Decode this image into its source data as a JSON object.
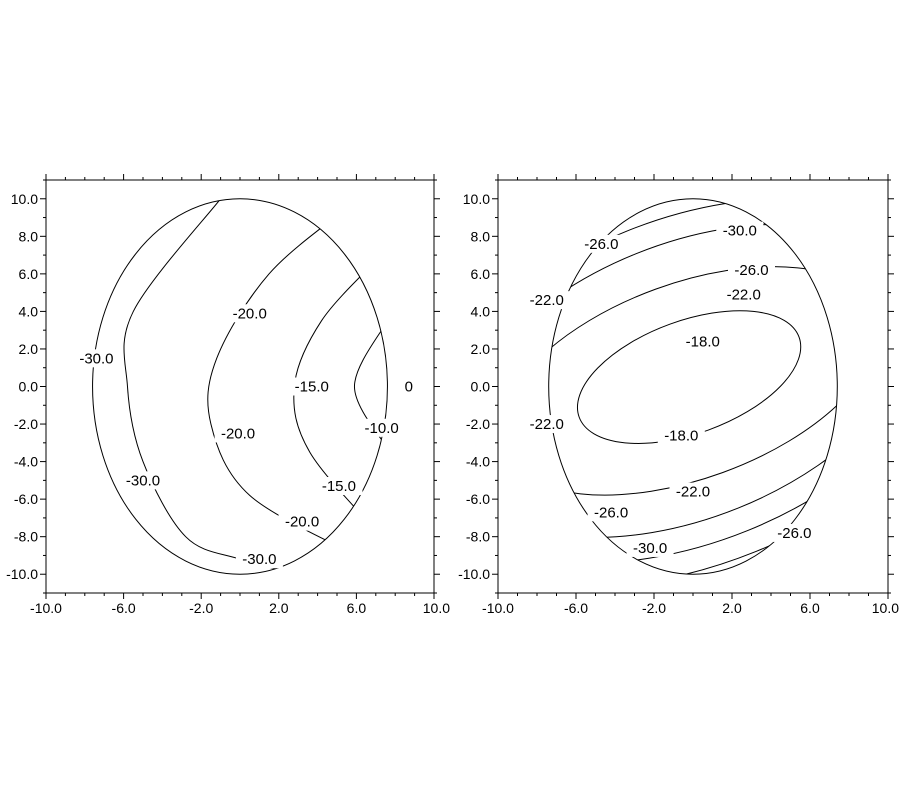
{
  "chart_data": [
    {
      "type": "contour",
      "xlim": [
        -10.0,
        10.0
      ],
      "ylim": [
        -11.0,
        11.0
      ],
      "x_ticks": [
        "-10.0",
        "-6.0",
        "-2.0",
        "2.0",
        "6.0",
        "10.0"
      ],
      "x_tick_values": [
        -10,
        -6,
        -2,
        2,
        6,
        10
      ],
      "y_ticks": [
        "10.0",
        "8.0",
        "6.0",
        "4.0",
        "2.0",
        "0.0",
        "-2.0",
        "-4.0",
        "-6.0",
        "-8.0",
        "-10.0"
      ],
      "y_tick_values": [
        10,
        8,
        6,
        4,
        2,
        0,
        -2,
        -4,
        -6,
        -8,
        -10
      ],
      "domain_ellipse": {
        "cx": 0,
        "cy": 0,
        "rx": 7.6,
        "ry": 10
      },
      "contours": [
        {
          "level": "-30.0",
          "points": [
            [
              -1,
              10
            ],
            [
              -5.5,
              4
            ],
            [
              -5.8,
              0
            ],
            [
              -5,
              -4
            ],
            [
              -2.8,
              -8
            ],
            [
              0,
              -9.2
            ],
            [
              3,
              -10
            ]
          ]
        },
        {
          "level": "-20.0",
          "points": [
            [
              5.5,
              9.5
            ],
            [
              1.5,
              6
            ],
            [
              -1.2,
              1.5
            ],
            [
              -1.5,
              -2
            ],
            [
              0.5,
              -5.8
            ],
            [
              6,
              -9
            ]
          ]
        },
        {
          "level": "-15.0",
          "points": [
            [
              7.1,
              6.8
            ],
            [
              4.2,
              3.5
            ],
            [
              2.8,
              0
            ],
            [
              3.6,
              -3.5
            ],
            [
              7.3,
              -8
            ]
          ]
        },
        {
          "level": "-10.0",
          "points": [
            [
              7.6,
              3.5
            ],
            [
              5.9,
              0
            ],
            [
              7.6,
              -3.3
            ]
          ]
        },
        {
          "level": "0",
          "points": []
        }
      ],
      "contour_labels": [
        {
          "text": "-30.0",
          "x": -7.4,
          "y": 1.5
        },
        {
          "text": "-30.0",
          "x": -5.0,
          "y": -5.0
        },
        {
          "text": "-30.0",
          "x": 1.0,
          "y": -9.2
        },
        {
          "text": "-20.0",
          "x": 0.5,
          "y": 3.9
        },
        {
          "text": "-20.0",
          "x": -0.1,
          "y": -2.5
        },
        {
          "text": "-20.0",
          "x": 3.2,
          "y": -7.2
        },
        {
          "text": "-15.0",
          "x": 3.7,
          "y": 0.0
        },
        {
          "text": "-15.0",
          "x": 5.1,
          "y": -5.3
        },
        {
          "text": "-10.0",
          "x": 7.3,
          "y": -2.2
        },
        {
          "text": "0",
          "x": 8.7,
          "y": 0.0
        }
      ]
    },
    {
      "type": "contour",
      "xlim": [
        -10.0,
        10.0
      ],
      "ylim": [
        -11.0,
        11.0
      ],
      "x_ticks": [
        "-10.0",
        "-6.0",
        "-2.0",
        "2.0",
        "6.0",
        "10.0"
      ],
      "x_tick_values": [
        -10,
        -6,
        -2,
        2,
        6,
        10
      ],
      "y_ticks": [
        "10.0",
        "8.0",
        "6.0",
        "4.0",
        "2.0",
        "0.0",
        "-2.0",
        "-4.0",
        "-6.0",
        "-8.0",
        "-10.0"
      ],
      "y_tick_values": [
        10,
        8,
        6,
        4,
        2,
        0,
        -2,
        -4,
        -6,
        -8,
        -10
      ],
      "domain_ellipse": {
        "cx": 0,
        "cy": 0,
        "rx": 7.4,
        "ry": 10
      },
      "contours": [
        {
          "level": "-18.0",
          "closed": true,
          "ellipse": {
            "cx": -0.2,
            "cy": 0.5,
            "rx": 6.0,
            "ry": 3.0,
            "angle_deg": -20
          }
        },
        {
          "level": "-22.0",
          "closed": true,
          "ellipse": {
            "cx": -0.2,
            "cy": 0.3,
            "rx": 10.2,
            "ry": 5.2,
            "angle_deg": -20
          }
        },
        {
          "level": "-26.0",
          "closed": true,
          "ellipse": {
            "cx": -0.3,
            "cy": 0.3,
            "rx": 12.5,
            "ry": 7.3,
            "angle_deg": -22
          }
        },
        {
          "level": "-26.0",
          "closed": true,
          "ellipse": {
            "cx": -0.3,
            "cy": 0.3,
            "rx": 14.2,
            "ry": 8.6,
            "angle_deg": -22
          }
        },
        {
          "level": "-30.0",
          "closed": true,
          "ellipse": {
            "cx": -0.3,
            "cy": 0.3,
            "rx": 16.0,
            "ry": 9.8,
            "angle_deg": -22
          }
        },
        {
          "level": "-30.0",
          "closed": true,
          "ellipse": {
            "cx": -0.3,
            "cy": 0.3,
            "rx": 17.8,
            "ry": 11.0,
            "angle_deg": -22
          }
        },
        {
          "level": "-30.0",
          "closed": true,
          "ellipse": {
            "cx": -0.3,
            "cy": 0.3,
            "rx": 19.8,
            "ry": 12.3,
            "angle_deg": -22
          }
        }
      ],
      "contour_labels": [
        {
          "text": "-30.0",
          "x": 2.4,
          "y": 8.3
        },
        {
          "text": "-26.0",
          "x": -4.7,
          "y": 7.6
        },
        {
          "text": "-26.0",
          "x": 3.0,
          "y": 6.2
        },
        {
          "text": "-22.0",
          "x": -7.5,
          "y": 4.6
        },
        {
          "text": "-22.0",
          "x": 2.6,
          "y": 4.9
        },
        {
          "text": "-18.0",
          "x": 0.5,
          "y": 2.4
        },
        {
          "text": "-18.0",
          "x": -0.6,
          "y": -2.6
        },
        {
          "text": "-22.0",
          "x": -7.5,
          "y": -2.0
        },
        {
          "text": "-22.0",
          "x": 0.0,
          "y": -5.6
        },
        {
          "text": "-26.0",
          "x": -4.2,
          "y": -6.7
        },
        {
          "text": "-26.0",
          "x": 5.2,
          "y": -7.8
        },
        {
          "text": "-30.0",
          "x": -2.2,
          "y": -8.6
        }
      ]
    }
  ]
}
